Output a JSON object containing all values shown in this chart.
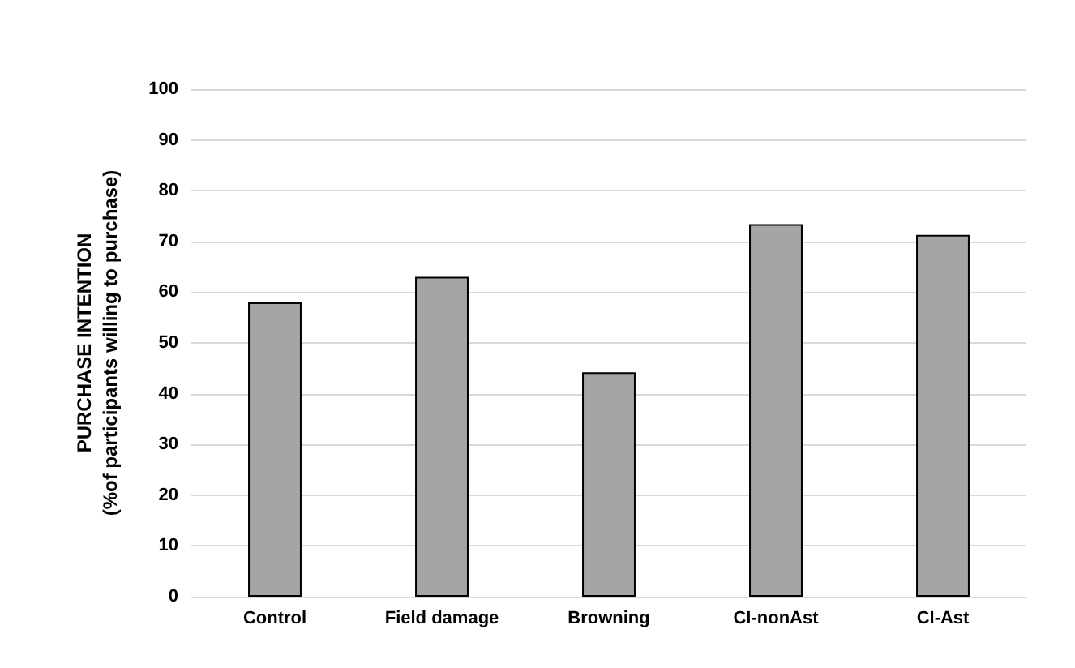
{
  "chart_data": {
    "type": "bar",
    "ylabel": "PURCHASE INTENTION\n(%of participants willing to purchase)",
    "categories": [
      "Control",
      "Field damage",
      "Browning",
      "CI-nonAst",
      "CI-Ast"
    ],
    "values": [
      58,
      63,
      44.2,
      73.4,
      71.3
    ],
    "color": "#a5a5a5",
    "ylim": [
      0,
      100
    ],
    "yticks": [
      0,
      10,
      20,
      30,
      40,
      50,
      60,
      70,
      80,
      90,
      100
    ],
    "grid": "y"
  }
}
